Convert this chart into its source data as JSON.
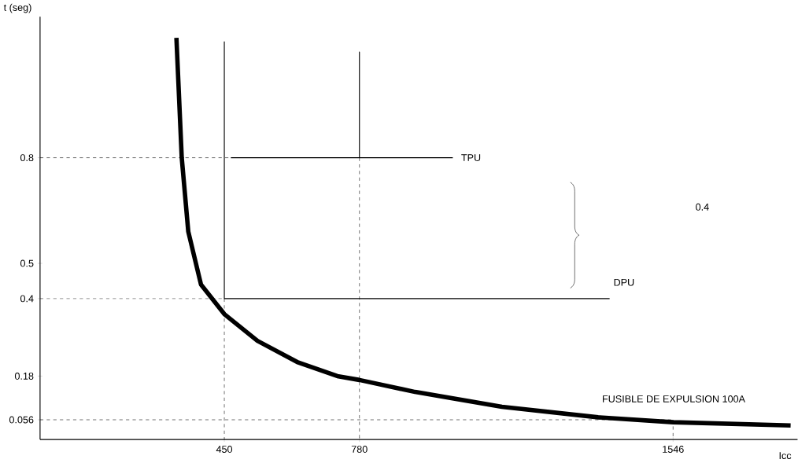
{
  "chart_data": {
    "type": "line",
    "xlabel": "Icc",
    "ylabel": "t (seg)",
    "xlim": [
      0,
      1850
    ],
    "ylim": [
      0,
      1.2
    ],
    "xticks": [
      450,
      780,
      1546
    ],
    "yticks": [
      0.056,
      0.18,
      0.4,
      0.5,
      0.8
    ],
    "grid": false,
    "marker": "none",
    "series": [
      {
        "name": "FUSIBLE DE EXPULSION 100A",
        "color": "#000000",
        "line_style": "solid",
        "x": [
          333,
          346,
          362,
          393,
          450,
          531,
          628,
          726,
          780,
          916,
          1128,
          1363,
          1546,
          1833
        ],
        "values": [
          1.14,
          0.8,
          0.59,
          0.44,
          0.356,
          0.28,
          0.22,
          0.18,
          0.169,
          0.135,
          0.093,
          0.063,
          0.049,
          0.04
        ]
      },
      {
        "name": "TPU",
        "color": "#000000",
        "line_style": "solid",
        "x": [
          466,
          780,
          780,
          780,
          1008
        ],
        "values": [
          0.8,
          0.8,
          1.1,
          0.8,
          0.8
        ]
      },
      {
        "name": "DPU",
        "color": "#000000",
        "line_style": "solid",
        "x": [
          450,
          450,
          1391
        ],
        "values": [
          1.13,
          0.4,
          0.4
        ]
      },
      {
        "color": "#000000",
        "line_style": "dashed",
        "x": [
          0,
          466
        ],
        "values": [
          0.8,
          0.8
        ]
      },
      {
        "color": "#000000",
        "line_style": "dashed",
        "x": [
          780,
          780
        ],
        "values": [
          0.8,
          0
        ]
      },
      {
        "color": "#000000",
        "line_style": "dashed",
        "x": [
          0,
          450
        ],
        "values": [
          0.4,
          0.4
        ]
      },
      {
        "color": "#000000",
        "line_style": "dashed",
        "x": [
          450,
          450
        ],
        "values": [
          0.4,
          0
        ]
      },
      {
        "color": "#000000",
        "line_style": "dashed",
        "x": [
          0,
          1546
        ],
        "values": [
          0.056,
          0.056
        ]
      },
      {
        "color": "#000000",
        "line_style": "dashed",
        "x": [
          1546,
          1546
        ],
        "values": [
          0.056,
          0
        ]
      }
    ],
    "annotations": [
      "0.4"
    ]
  }
}
